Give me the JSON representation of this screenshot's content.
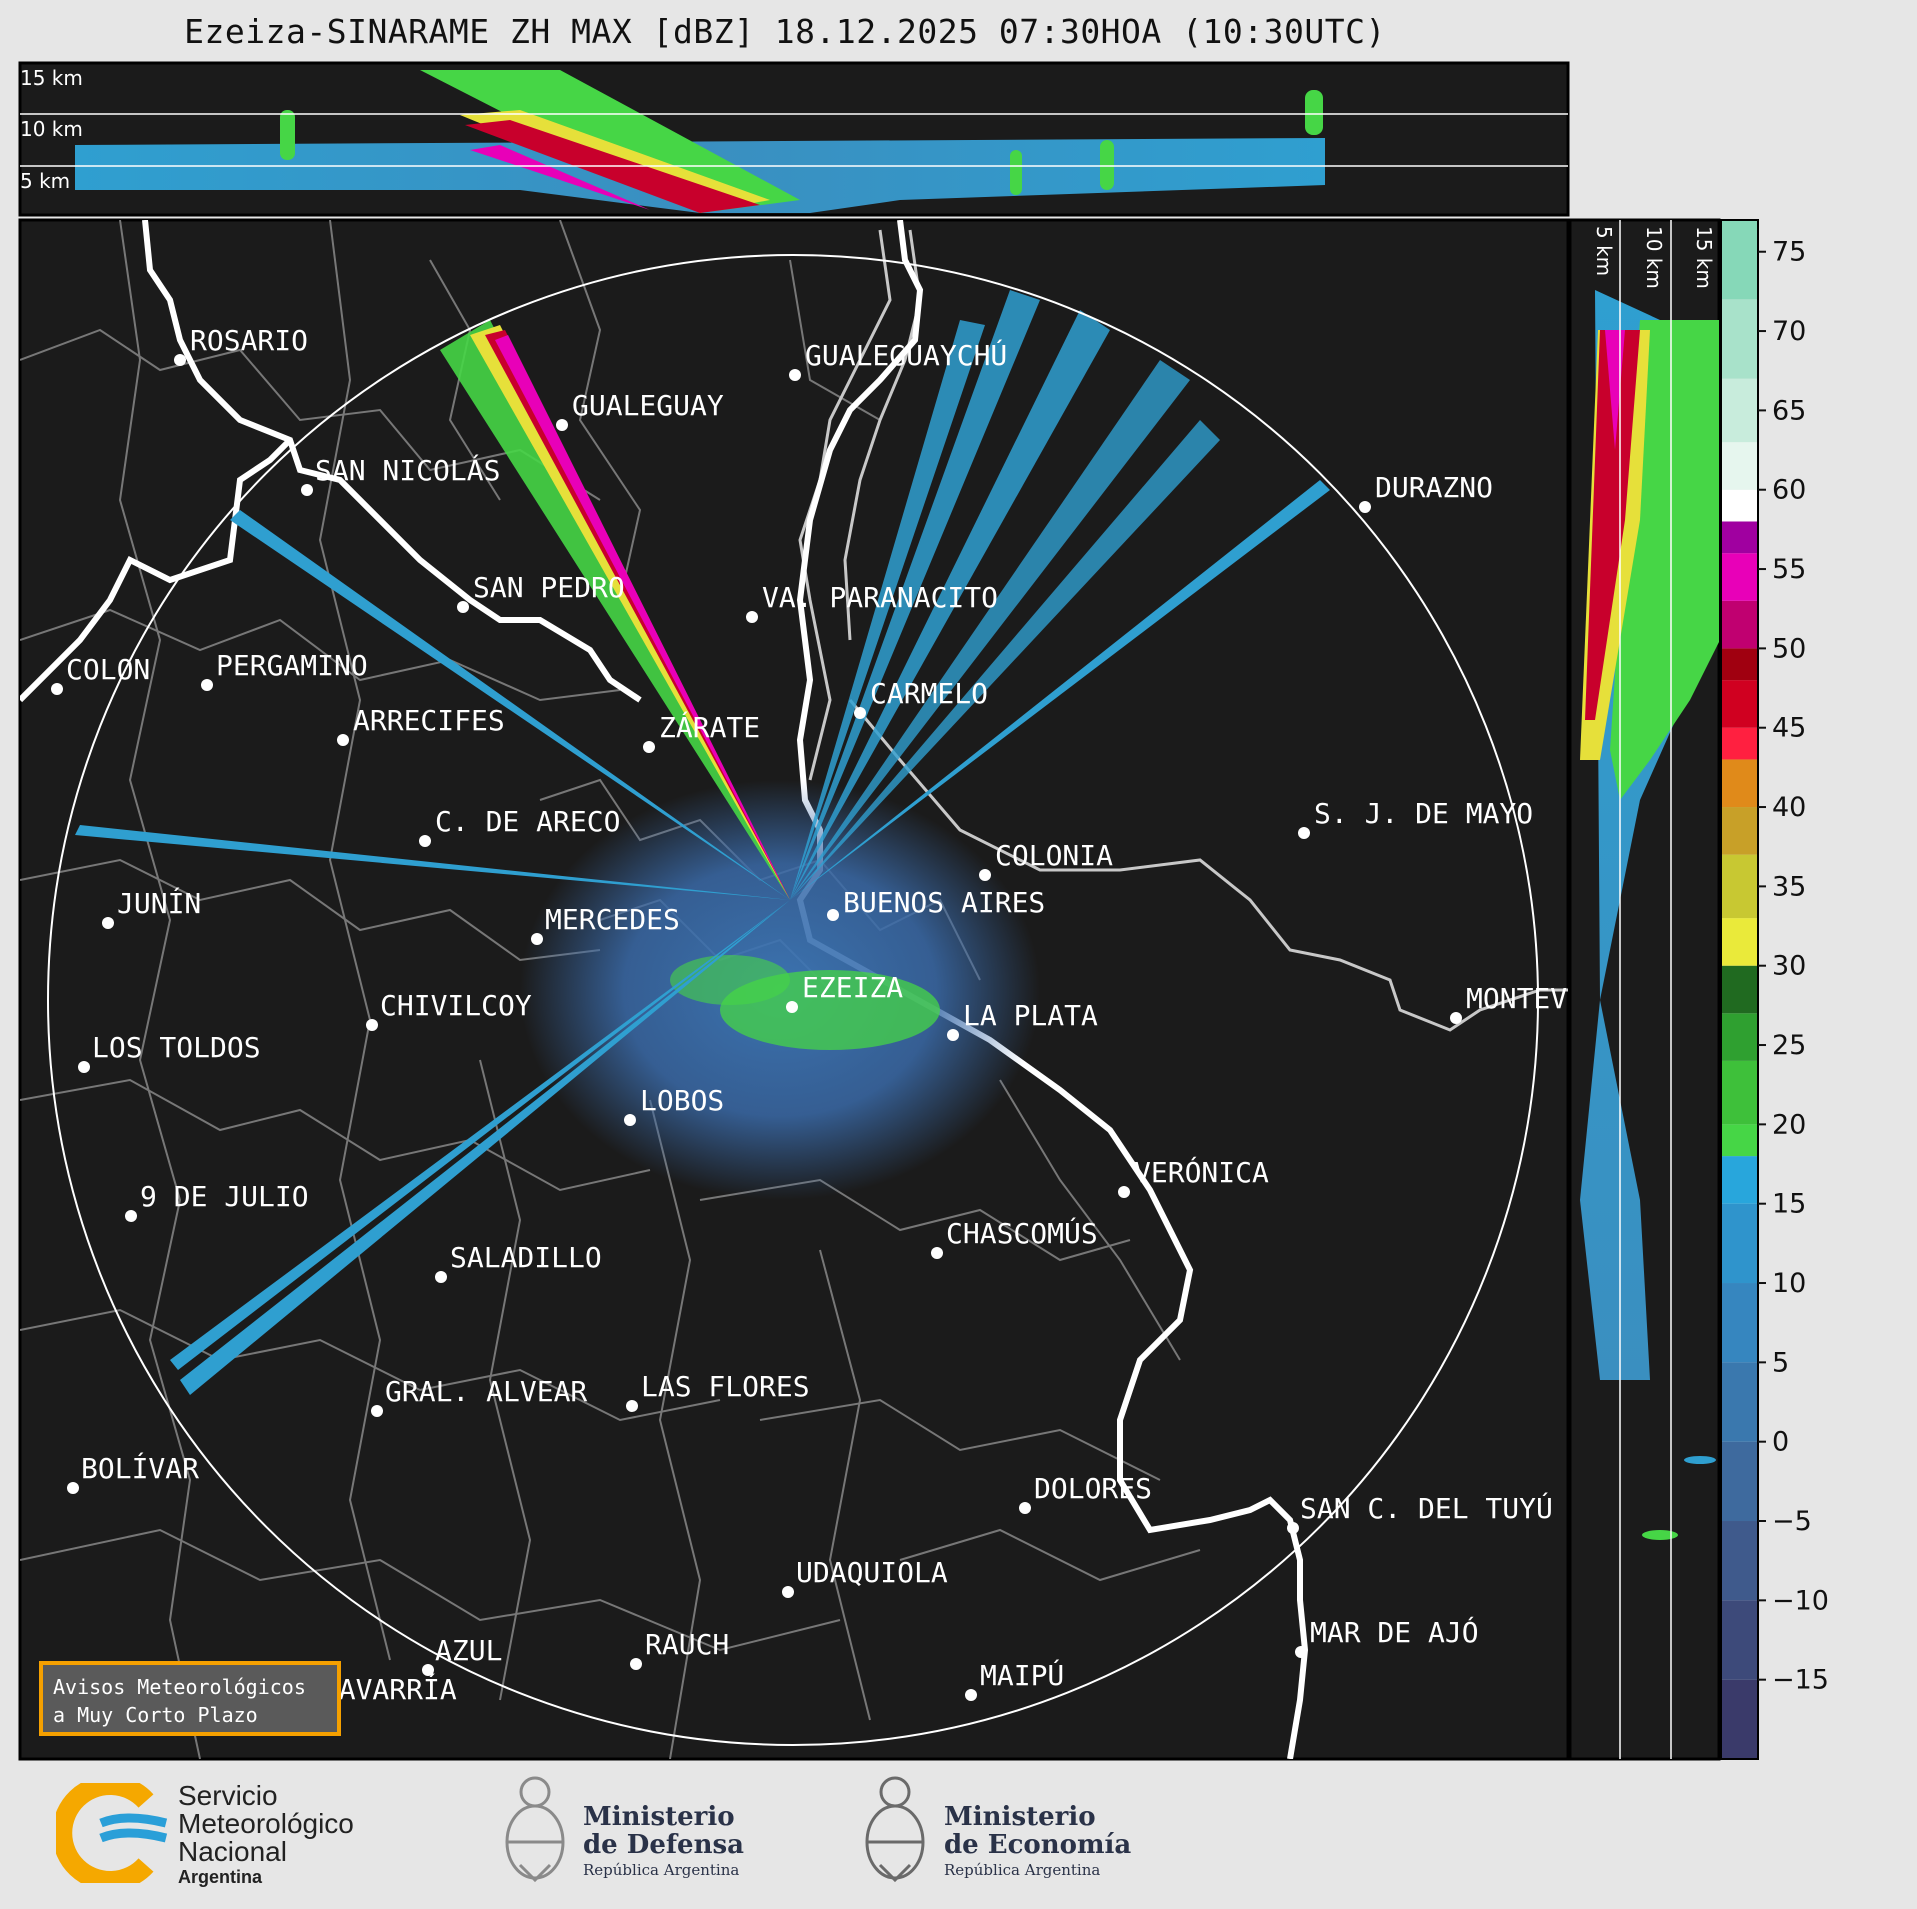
{
  "title": "Ezeiza-SINARAME ZH MAX [dBZ] 18.12.2025 07:30HOA (10:30UTC)",
  "top_panel": {
    "labels": [
      "15 km",
      "10 km",
      "5 km"
    ]
  },
  "side_panel": {
    "labels": [
      "5 km",
      "10 km",
      "15 km"
    ]
  },
  "colorbar": {
    "ticks": [
      "75",
      "70",
      "65",
      "60",
      "55",
      "50",
      "45",
      "40",
      "35",
      "30",
      "25",
      "20",
      "15",
      "10",
      "5",
      "0",
      "−5",
      "−10",
      "−15"
    ]
  },
  "cities": [
    {
      "name": "ROSARIO"
    },
    {
      "name": "GUALEGUAYCHÚ"
    },
    {
      "name": "GUALEGUAY"
    },
    {
      "name": "SAN NICOLÁS"
    },
    {
      "name": "DURAZNO"
    },
    {
      "name": "SAN PEDRO"
    },
    {
      "name": "VA. PARANACITO"
    },
    {
      "name": "COLON"
    },
    {
      "name": "PERGAMINO"
    },
    {
      "name": "CARMELO"
    },
    {
      "name": "ARRECIFES"
    },
    {
      "name": "ZÁRATE"
    },
    {
      "name": "S. J. DE MAYO"
    },
    {
      "name": "C. DE ARECO"
    },
    {
      "name": "COLONIA"
    },
    {
      "name": "JUNÍN"
    },
    {
      "name": "BUENOS AIRES"
    },
    {
      "name": "MERCEDES"
    },
    {
      "name": "EZEIZA"
    },
    {
      "name": "MONTEV"
    },
    {
      "name": "CHIVILCOY"
    },
    {
      "name": "LA PLATA"
    },
    {
      "name": "LOS TOLDOS"
    },
    {
      "name": "LOBOS"
    },
    {
      "name": "VERÓNICA"
    },
    {
      "name": "9 DE JULIO"
    },
    {
      "name": "CHASCOMÚS"
    },
    {
      "name": "SALADILLO"
    },
    {
      "name": "GRAL. ALVEAR"
    },
    {
      "name": "LAS FLORES"
    },
    {
      "name": "BOLÍVAR"
    },
    {
      "name": "DOLORES"
    },
    {
      "name": "SAN C. DEL TUYÚ"
    },
    {
      "name": "UDAQUIOLA"
    },
    {
      "name": "MAR DE AJÓ"
    },
    {
      "name": "AZUL"
    },
    {
      "name": "RAUCH"
    },
    {
      "name": "MAIPÚ"
    },
    {
      "name": "OLAVARRÍA"
    }
  ],
  "avisos": {
    "line1": "Avisos Meteorológicos",
    "line2": "a Muy Corto Plazo"
  },
  "logos": {
    "smn": {
      "line1": "Servicio",
      "line2": "Meteorológico",
      "line3": "Nacional",
      "line4": "Argentina"
    },
    "defensa": {
      "line1": "Ministerio",
      "line2": "de Defensa",
      "line3": "República Argentina"
    },
    "economia": {
      "line1": "Ministerio",
      "line2": "de Economía",
      "line3": "República Argentina"
    }
  },
  "colors": {
    "background": "#1b1b1b",
    "page": "#e6e6e6",
    "accent": "#f5a000"
  }
}
